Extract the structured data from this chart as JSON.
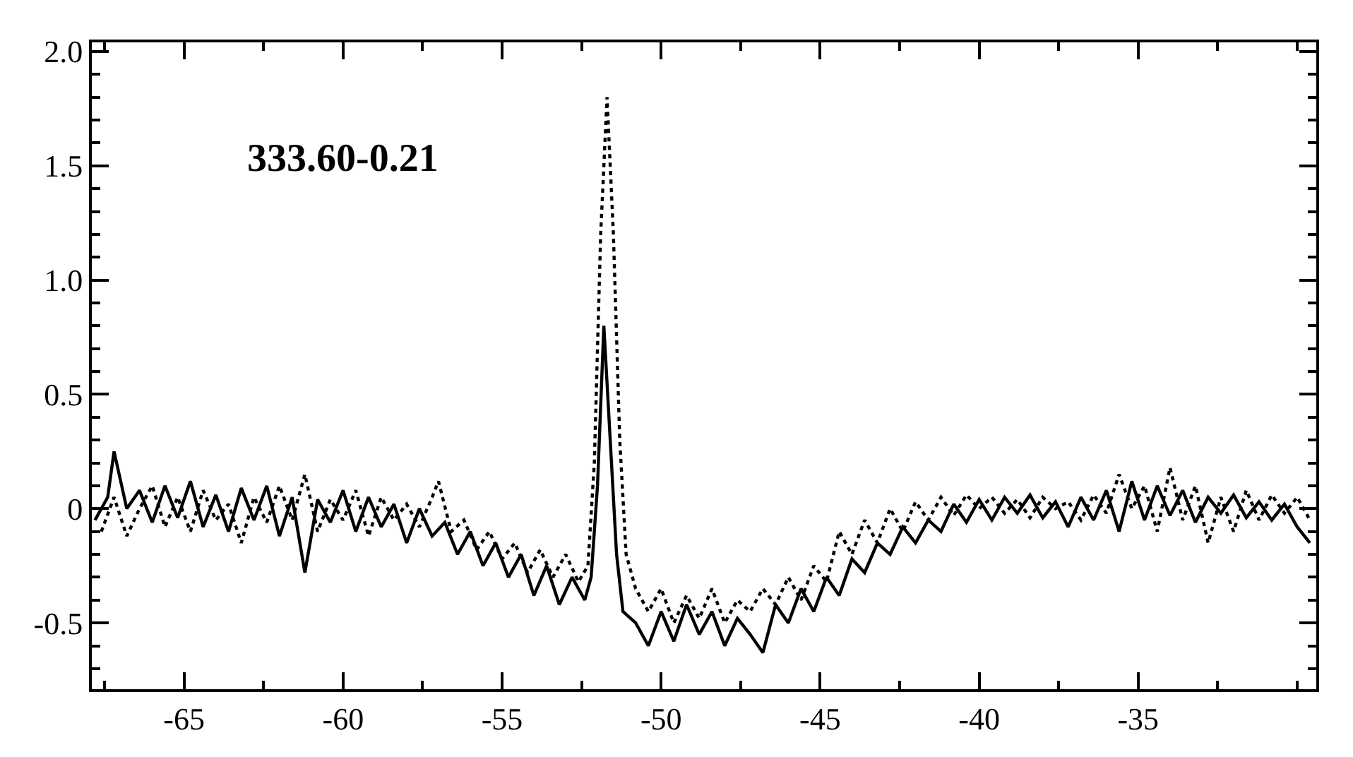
{
  "chart_data": {
    "type": "line",
    "annotations": [
      "333.60-0.21"
    ],
    "xlim": [
      -67.9,
      -29.4
    ],
    "ylim": [
      -0.79,
      2.04
    ],
    "xticks": [
      -65,
      -60,
      -55,
      -50,
      -45,
      -40,
      -35
    ],
    "yticks": [
      {
        "value": 2,
        "label": "2.0"
      },
      {
        "value": 1.5,
        "label": "1.5"
      },
      {
        "value": 1,
        "label": "1.0"
      },
      {
        "value": 0.5,
        "label": "0.5"
      },
      0,
      -0.5
    ],
    "marker": "none",
    "series": [
      {
        "color": "#000000",
        "line_style": "solid",
        "x": [
          -67.8,
          -67.4,
          -67.2,
          -66.8,
          -66.4,
          -66.0,
          -65.6,
          -65.2,
          -64.8,
          -64.4,
          -64.0,
          -63.6,
          -63.2,
          -62.8,
          -62.4,
          -62.0,
          -61.6,
          -61.2,
          -60.8,
          -60.4,
          -60.0,
          -59.6,
          -59.2,
          -58.8,
          -58.4,
          -58.0,
          -57.6,
          -57.2,
          -56.8,
          -56.4,
          -56.0,
          -55.6,
          -55.2,
          -54.8,
          -54.4,
          -54.0,
          -53.6,
          -53.2,
          -52.8,
          -52.4,
          -52.2,
          -52.0,
          -51.8,
          -51.6,
          -51.4,
          -51.2,
          -50.8,
          -50.4,
          -50.0,
          -49.6,
          -49.2,
          -48.8,
          -48.4,
          -48.0,
          -47.6,
          -47.2,
          -46.8,
          -46.4,
          -46.0,
          -45.6,
          -45.2,
          -44.8,
          -44.4,
          -44.0,
          -43.6,
          -43.2,
          -42.8,
          -42.4,
          -42.0,
          -41.6,
          -41.2,
          -40.8,
          -40.4,
          -40.0,
          -39.6,
          -39.2,
          -38.8,
          -38.4,
          -38.0,
          -37.6,
          -37.2,
          -36.8,
          -36.4,
          -36.0,
          -35.6,
          -35.2,
          -34.8,
          -34.4,
          -34.0,
          -33.6,
          -33.2,
          -32.8,
          -32.4,
          -32.0,
          -31.6,
          -31.2,
          -30.8,
          -30.4,
          -30.0,
          -29.6
        ],
        "values": [
          -0.05,
          0.05,
          0.25,
          0.0,
          0.08,
          -0.06,
          0.1,
          -0.04,
          0.12,
          -0.08,
          0.06,
          -0.1,
          0.09,
          -0.05,
          0.1,
          -0.12,
          0.05,
          -0.28,
          0.04,
          -0.06,
          0.08,
          -0.1,
          0.05,
          -0.08,
          0.02,
          -0.15,
          0.0,
          -0.12,
          -0.06,
          -0.2,
          -0.1,
          -0.25,
          -0.15,
          -0.3,
          -0.2,
          -0.38,
          -0.25,
          -0.42,
          -0.3,
          -0.4,
          -0.3,
          0.1,
          0.8,
          0.3,
          -0.2,
          -0.45,
          -0.5,
          -0.6,
          -0.45,
          -0.58,
          -0.42,
          -0.55,
          -0.45,
          -0.6,
          -0.48,
          -0.55,
          -0.63,
          -0.42,
          -0.5,
          -0.35,
          -0.45,
          -0.3,
          -0.38,
          -0.22,
          -0.28,
          -0.15,
          -0.2,
          -0.08,
          -0.15,
          -0.05,
          -0.1,
          0.02,
          -0.06,
          0.04,
          -0.05,
          0.05,
          -0.02,
          0.06,
          -0.04,
          0.03,
          -0.08,
          0.05,
          -0.05,
          0.08,
          -0.1,
          0.12,
          -0.05,
          0.1,
          -0.03,
          0.08,
          -0.06,
          0.05,
          -0.02,
          0.06,
          -0.04,
          0.03,
          -0.05,
          0.02,
          -0.08,
          -0.15
        ]
      },
      {
        "color": "#000000",
        "line_style": "dotted",
        "x": [
          -67.6,
          -67.2,
          -66.8,
          -66.4,
          -66.0,
          -65.6,
          -65.2,
          -64.8,
          -64.4,
          -64.0,
          -63.6,
          -63.2,
          -62.8,
          -62.4,
          -62.0,
          -61.6,
          -61.2,
          -60.8,
          -60.4,
          -60.0,
          -59.6,
          -59.2,
          -58.8,
          -58.4,
          -58.0,
          -57.6,
          -57.2,
          -57.0,
          -56.6,
          -56.2,
          -55.8,
          -55.4,
          -55.0,
          -54.6,
          -54.2,
          -53.8,
          -53.4,
          -53.0,
          -52.6,
          -52.3,
          -52.1,
          -51.9,
          -51.7,
          -51.5,
          -51.3,
          -51.1,
          -50.8,
          -50.4,
          -50.0,
          -49.6,
          -49.2,
          -48.8,
          -48.4,
          -48.0,
          -47.6,
          -47.2,
          -46.8,
          -46.4,
          -46.0,
          -45.6,
          -45.2,
          -44.8,
          -44.4,
          -44.0,
          -43.6,
          -43.2,
          -42.8,
          -42.4,
          -42.0,
          -41.6,
          -41.2,
          -40.8,
          -40.4,
          -40.0,
          -39.6,
          -39.2,
          -38.8,
          -38.4,
          -38.0,
          -37.6,
          -37.2,
          -36.8,
          -36.4,
          -36.0,
          -35.6,
          -35.2,
          -34.8,
          -34.4,
          -34.0,
          -33.6,
          -33.2,
          -32.8,
          -32.4,
          -32.0,
          -31.6,
          -31.2,
          -30.8,
          -30.4,
          -30.0,
          -29.6
        ],
        "values": [
          -0.1,
          0.05,
          -0.12,
          0.0,
          0.1,
          -0.08,
          0.05,
          -0.1,
          0.08,
          -0.05,
          0.02,
          -0.15,
          0.05,
          -0.06,
          0.1,
          -0.05,
          0.15,
          -0.1,
          0.04,
          -0.05,
          0.08,
          -0.12,
          0.05,
          -0.05,
          0.02,
          -0.08,
          0.05,
          0.12,
          -0.1,
          -0.05,
          -0.18,
          -0.1,
          -0.22,
          -0.15,
          -0.28,
          -0.18,
          -0.3,
          -0.2,
          -0.32,
          -0.25,
          0.2,
          1.2,
          1.8,
          1.2,
          0.3,
          -0.2,
          -0.35,
          -0.45,
          -0.35,
          -0.5,
          -0.38,
          -0.48,
          -0.35,
          -0.5,
          -0.4,
          -0.45,
          -0.35,
          -0.42,
          -0.3,
          -0.4,
          -0.25,
          -0.32,
          -0.1,
          -0.2,
          -0.05,
          -0.15,
          0.0,
          -0.1,
          0.03,
          -0.05,
          0.05,
          -0.03,
          0.06,
          0.0,
          0.05,
          -0.02,
          0.04,
          -0.04,
          0.05,
          0.0,
          0.03,
          -0.05,
          0.06,
          -0.02,
          0.15,
          0.0,
          0.1,
          -0.1,
          0.18,
          -0.05,
          0.1,
          -0.15,
          0.05,
          -0.1,
          0.08,
          -0.05,
          0.06,
          -0.02,
          0.05,
          -0.05
        ]
      }
    ]
  }
}
